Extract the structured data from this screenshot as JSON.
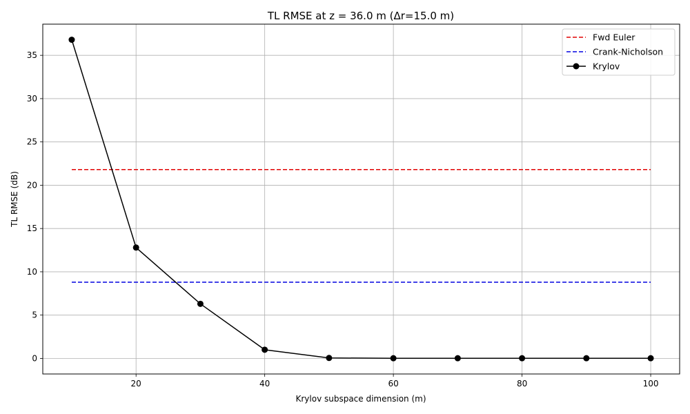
{
  "chart_data": {
    "type": "line",
    "title": "TL RMSE at z = 36.0 m (Δr=15.0 m)",
    "xlabel": "Krylov subspace dimension (m)",
    "ylabel": "TL RMSE (dB)",
    "xlim": [
      5.5,
      104.5
    ],
    "ylim": [
      -1.8,
      38.6
    ],
    "xticks": [
      20,
      40,
      60,
      80,
      100
    ],
    "yticks": [
      0,
      5,
      10,
      15,
      20,
      25,
      30,
      35
    ],
    "grid": true,
    "legend_position": "top-right",
    "series": [
      {
        "name": "Fwd Euler",
        "style": "dashed",
        "color": "#e00000",
        "x": [
          10,
          100
        ],
        "y": [
          21.8,
          21.8
        ]
      },
      {
        "name": "Crank-Nicholson",
        "style": "dashed",
        "color": "#0000e0",
        "x": [
          10,
          100
        ],
        "y": [
          8.8,
          8.8
        ]
      },
      {
        "name": "Krylov",
        "style": "solid-markers",
        "color": "#000000",
        "x": [
          10,
          20,
          30,
          40,
          50,
          60,
          70,
          80,
          90,
          100
        ],
        "y": [
          36.8,
          12.8,
          6.3,
          1.0,
          0.05,
          0.02,
          0.02,
          0.02,
          0.02,
          0.02
        ]
      }
    ]
  }
}
